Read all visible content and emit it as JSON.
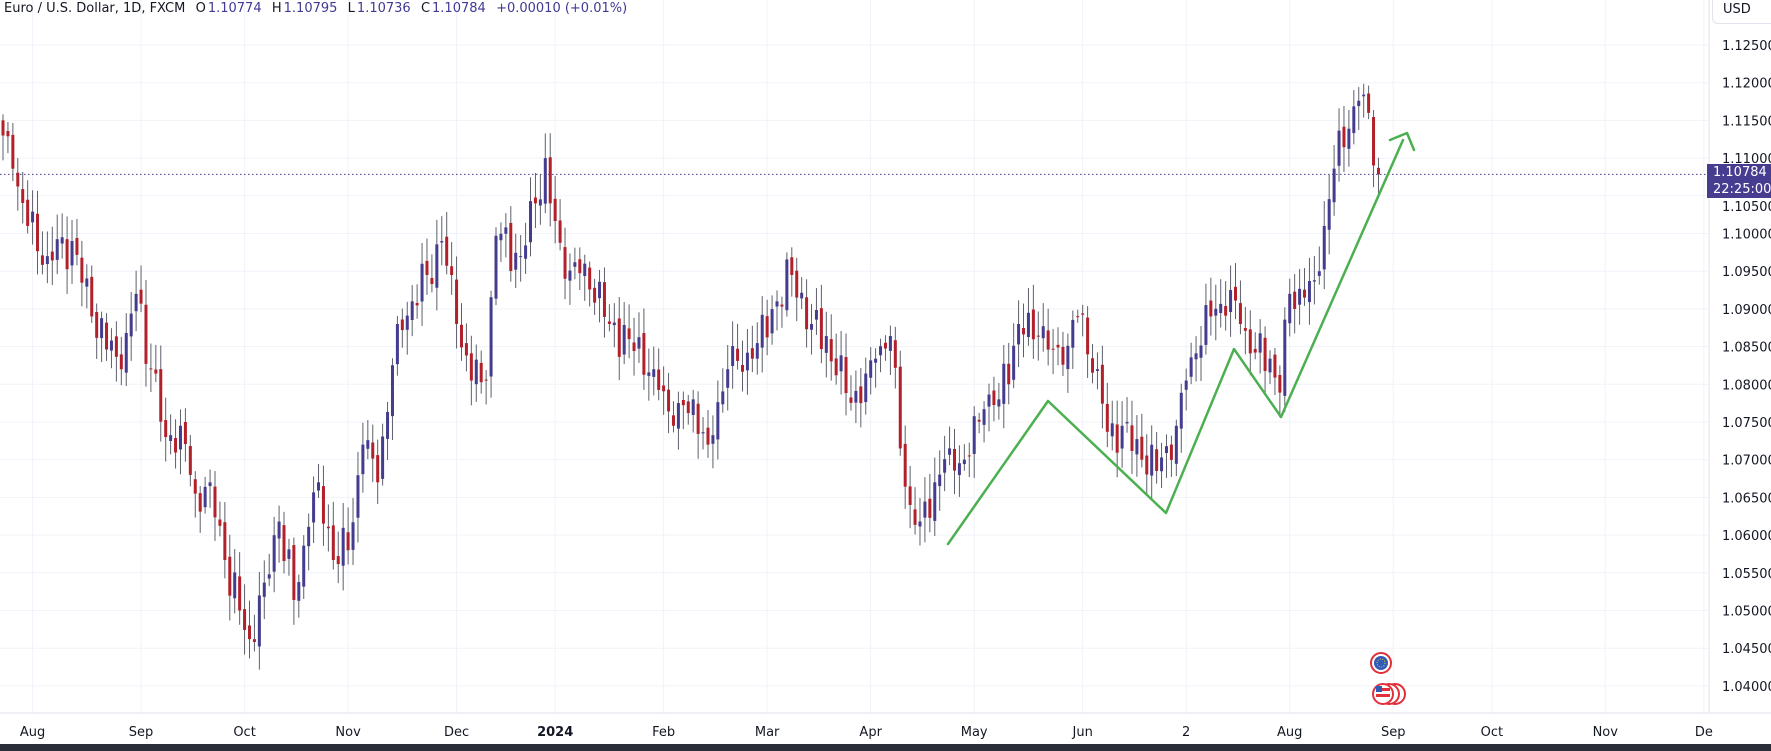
{
  "header": {
    "symbol": "Euro / U.S. Dollar, 1D, FXCM",
    "open_label": "O",
    "open": "1.10774",
    "high_label": "H",
    "high": "1.10795",
    "low_label": "L",
    "low": "1.10736",
    "close_label": "C",
    "close": "1.10784",
    "change": "+0.00010 (+0.01%)"
  },
  "price_axis": {
    "currency": "USD",
    "current_price": "1.10784",
    "countdown": "22:25:00"
  },
  "colors": {
    "up": "#433c8f",
    "down": "#b2202a",
    "wick": "#5d606b",
    "drawing": "#4caf50",
    "grid": "#f0f3fa"
  },
  "chart_data": {
    "type": "candlestick",
    "title": "Euro / U.S. Dollar, 1D, FXCM",
    "ylabel": "USD",
    "ylim": [
      1.0375,
      1.1285
    ],
    "y_ticks": [
      "1.04000",
      "1.04500",
      "1.05000",
      "1.05500",
      "1.06000",
      "1.06500",
      "1.07000",
      "1.07500",
      "1.08000",
      "1.08500",
      "1.09000",
      "1.09500",
      "1.10000",
      "1.10500",
      "1.11000",
      "1.11500",
      "1.12000",
      "1.12500"
    ],
    "x_ticks": [
      {
        "label": "Aug",
        "day": 6
      },
      {
        "label": "Sep",
        "day": 28
      },
      {
        "label": "Oct",
        "day": 49
      },
      {
        "label": "Nov",
        "day": 70
      },
      {
        "label": "Dec",
        "day": 92
      },
      {
        "label": "2024",
        "day": 112
      },
      {
        "label": "Feb",
        "day": 134
      },
      {
        "label": "Mar",
        "day": 155
      },
      {
        "label": "Apr",
        "day": 176
      },
      {
        "label": "May",
        "day": 197
      },
      {
        "label": "Jun",
        "day": 219
      },
      {
        "label": "2",
        "day": 240
      },
      {
        "label": "Aug",
        "day": 261
      },
      {
        "label": "Sep",
        "day": 282
      },
      {
        "label": "Oct",
        "day": 302
      },
      {
        "label": "Nov",
        "day": 325
      },
      {
        "label": "De",
        "day": 345
      }
    ],
    "last_close": 1.10784,
    "close_anchors_day_price": [
      [
        0,
        1.113
      ],
      [
        2,
        1.1086
      ],
      [
        5,
        1.101
      ],
      [
        9,
        1.097
      ],
      [
        14,
        1.099
      ],
      [
        18,
        1.089
      ],
      [
        24,
        1.082
      ],
      [
        27,
        1.092
      ],
      [
        30,
        1.082
      ],
      [
        33,
        1.073
      ],
      [
        36,
        1.0745
      ],
      [
        39,
        1.0655
      ],
      [
        42,
        1.067
      ],
      [
        45,
        1.0567
      ],
      [
        48,
        1.05
      ],
      [
        50,
        1.0462
      ],
      [
        53,
        1.0537
      ],
      [
        56,
        1.0618
      ],
      [
        59,
        1.0514
      ],
      [
        62,
        1.0611
      ],
      [
        64,
        1.067
      ],
      [
        67,
        1.0567
      ],
      [
        70,
        1.058
      ],
      [
        73,
        1.072
      ],
      [
        76,
        1.067
      ],
      [
        80,
        1.088
      ],
      [
        83,
        1.091
      ],
      [
        86,
        1.0945
      ],
      [
        89,
        1.099
      ],
      [
        92,
        1.088
      ],
      [
        95,
        1.0805
      ],
      [
        98,
        1.0805
      ],
      [
        100,
        1.0997
      ],
      [
        105,
        1.097
      ],
      [
        108,
        1.104
      ],
      [
        110,
        1.11
      ],
      [
        111,
        1.104
      ],
      [
        114,
        1.094
      ],
      [
        118,
        1.096
      ],
      [
        123,
        1.088
      ],
      [
        127,
        1.086
      ],
      [
        132,
        1.082
      ],
      [
        136,
        1.0745
      ],
      [
        140,
        1.078
      ],
      [
        143,
        1.072
      ],
      [
        147,
        1.082
      ],
      [
        152,
        1.0834
      ],
      [
        157,
        1.091
      ],
      [
        160,
        1.0945
      ],
      [
        164,
        1.088
      ],
      [
        167,
        1.0864
      ],
      [
        169,
        1.0812
      ],
      [
        174,
        1.0775
      ],
      [
        177,
        1.0834
      ],
      [
        180,
        1.0864
      ],
      [
        182,
        1.0715
      ],
      [
        184,
        1.064
      ],
      [
        186,
        1.0618
      ],
      [
        189,
        1.067
      ],
      [
        192,
        1.0715
      ],
      [
        195,
        1.07
      ],
      [
        199,
        1.0767
      ],
      [
        202,
        1.078
      ],
      [
        206,
        1.088
      ],
      [
        210,
        1.0864
      ],
      [
        215,
        1.0826
      ],
      [
        218,
        1.089
      ],
      [
        222,
        1.082
      ],
      [
        224,
        1.0737
      ],
      [
        227,
        1.0745
      ],
      [
        231,
        1.07
      ],
      [
        234,
        1.0685
      ],
      [
        238,
        1.0745
      ],
      [
        240,
        1.0805
      ],
      [
        242,
        1.0841
      ],
      [
        245,
        1.089
      ],
      [
        249,
        1.0925
      ],
      [
        251,
        1.088
      ],
      [
        253,
        1.0841
      ],
      [
        257,
        1.0834
      ],
      [
        259,
        1.0789
      ],
      [
        261,
        1.092
      ],
      [
        264,
        1.0915
      ],
      [
        266,
        1.0938
      ],
      [
        268,
        1.101
      ],
      [
        270,
        1.1086
      ],
      [
        273,
        1.1139
      ],
      [
        275,
        1.1176
      ],
      [
        277,
        1.116
      ],
      [
        279,
        1.10784
      ]
    ]
  }
}
